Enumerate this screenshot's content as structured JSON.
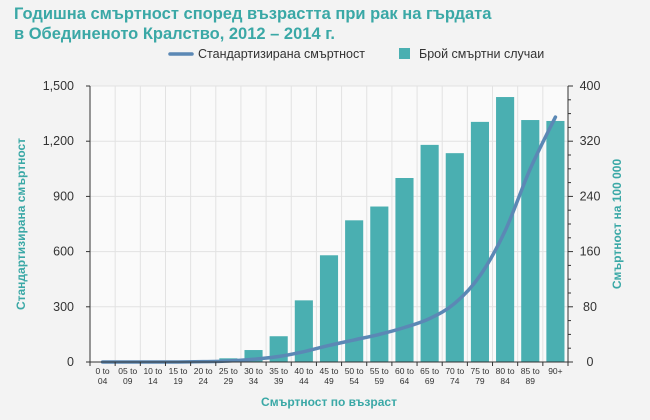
{
  "title_line1": "Годишна смъртност според възрастта при рак на гърдата",
  "title_line2": "в Обединеното Кралство, 2012 – 2014 г.",
  "chart_data": {
    "type": "bar",
    "categories": [
      [
        "0 to",
        "04"
      ],
      [
        "05 to",
        "09"
      ],
      [
        "10 to",
        "14"
      ],
      [
        "15 to",
        "19"
      ],
      [
        "20 to",
        "24"
      ],
      [
        "25 to",
        "29"
      ],
      [
        "30 to",
        "34"
      ],
      [
        "35 to",
        "39"
      ],
      [
        "40 to",
        "44"
      ],
      [
        "45 to",
        "49"
      ],
      [
        "50 to",
        "54"
      ],
      [
        "55 to",
        "59"
      ],
      [
        "60 to",
        "64"
      ],
      [
        "65 to",
        "69"
      ],
      [
        "70 to",
        "74"
      ],
      [
        "75 to",
        "79"
      ],
      [
        "80 to",
        "84"
      ],
      [
        "85 to",
        "89"
      ],
      [
        "90+",
        ""
      ]
    ],
    "series": [
      {
        "name": "Брой смъртни случаи",
        "type": "bar",
        "axis": "left",
        "color": "#4aafb1",
        "values": [
          0,
          0,
          0,
          0,
          5,
          20,
          65,
          140,
          335,
          580,
          770,
          845,
          1000,
          1180,
          1135,
          1305,
          1440,
          1315,
          1310
        ]
      },
      {
        "name": "Стандартизирана смъртност",
        "type": "line",
        "axis": "right",
        "color": "#5b88b5",
        "values": [
          0,
          0,
          0,
          0,
          0.5,
          1.5,
          4,
          8,
          15,
          24,
          32,
          40,
          50,
          63,
          85,
          125,
          190,
          280,
          355
        ]
      }
    ],
    "y_left": {
      "label": "Стандартизирана смъртност",
      "ticks": [
        "0",
        "300",
        "600",
        "900",
        "1,200",
        "1,500"
      ],
      "range": [
        0,
        1500
      ]
    },
    "y_right": {
      "label": "Смъртност на 100 000",
      "ticks": [
        "0",
        "80",
        "160",
        "240",
        "320",
        "400"
      ],
      "range": [
        0,
        400
      ]
    },
    "xlabel": "Смъртност по възраст",
    "legend_position": "top-right",
    "grid": true
  }
}
